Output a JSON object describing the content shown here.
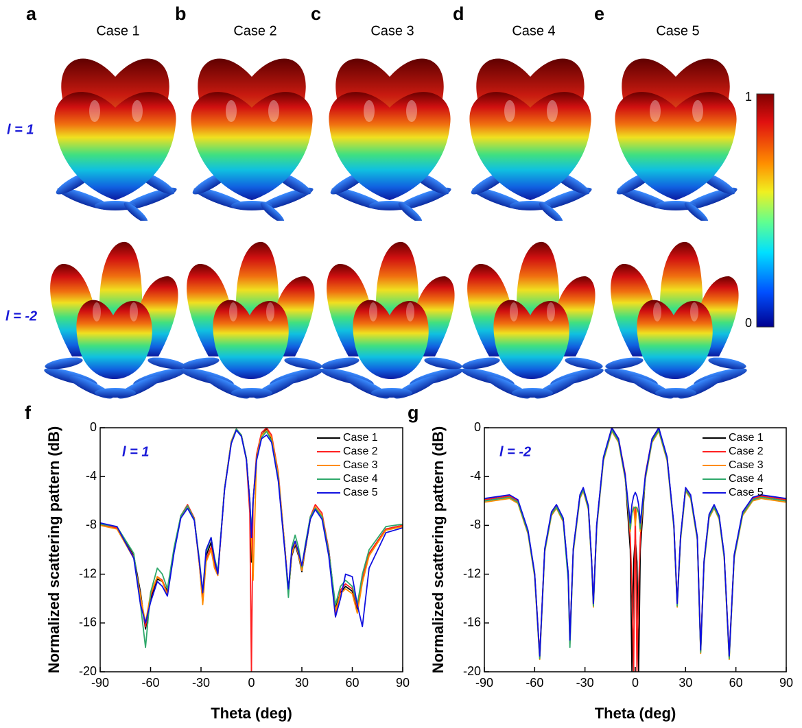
{
  "top": {
    "panels": [
      {
        "letter": "a",
        "title": "Case 1"
      },
      {
        "letter": "b",
        "title": "Case 2"
      },
      {
        "letter": "c",
        "title": "Case 3"
      },
      {
        "letter": "d",
        "title": "Case 4"
      },
      {
        "letter": "e",
        "title": "Case 5"
      }
    ],
    "rows": [
      "l = 1",
      "l = -2"
    ],
    "colorbar": {
      "max": 1,
      "min": 0
    }
  },
  "chart_data": [
    {
      "type": "line",
      "label": "f",
      "annotation": "l = 1",
      "x_label": "Theta (deg)",
      "y_label": "Normalized scattering pattern (dB)",
      "xlim": [
        -90,
        90
      ],
      "xticks": [
        -90,
        -60,
        -30,
        0,
        30,
        60,
        90
      ],
      "ylim": [
        -20,
        0
      ],
      "yticks": [
        0,
        -4,
        -8,
        -12,
        -16,
        -20
      ],
      "x": [
        -90,
        -80,
        -70,
        -66,
        -63,
        -60,
        -56,
        -53,
        -50,
        -46,
        -42,
        -38,
        -34,
        -31,
        -29,
        -27,
        -24,
        -22,
        -20,
        -16,
        -12,
        -9,
        -6,
        -3,
        -1,
        0,
        1,
        3,
        6,
        9,
        12,
        16,
        20,
        22,
        24,
        26,
        28,
        30,
        32,
        35,
        38,
        42,
        46,
        50,
        53,
        56,
        60,
        63,
        66,
        70,
        80,
        90
      ],
      "series": [
        {
          "name": "Case 1",
          "color": "#000000",
          "values": [
            -7.9,
            -8.2,
            -10.5,
            -13.5,
            -16.5,
            -14,
            -12.4,
            -12.6,
            -13.4,
            -10,
            -7.3,
            -6.4,
            -7.5,
            -11,
            -13.8,
            -10.5,
            -9.4,
            -11,
            -12,
            -5,
            -1.2,
            -0.1,
            -0.6,
            -2.5,
            -6,
            -11,
            -6,
            -2.5,
            -0.6,
            -0.1,
            -0.9,
            -4,
            -10,
            -13.5,
            -10.5,
            -9.6,
            -10.5,
            -11.8,
            -10,
            -7.5,
            -6.5,
            -7.2,
            -10,
            -14.8,
            -13.5,
            -13,
            -13.4,
            -15,
            -12.5,
            -10.3,
            -8.3,
            -8
          ]
        },
        {
          "name": "Case 2",
          "color": "#ff2020",
          "values": [
            -7.9,
            -8.2,
            -10.6,
            -13.8,
            -16.3,
            -13.8,
            -12.2,
            -12.5,
            -13.6,
            -10,
            -7.2,
            -6.3,
            -7.4,
            -11.2,
            -14.3,
            -10.8,
            -9.8,
            -11.3,
            -12.1,
            -5,
            -1.1,
            -0.1,
            -0.6,
            -2.6,
            -7,
            -20,
            -6,
            -2.2,
            -0.4,
            0,
            -0.6,
            -3.7,
            -10,
            -13.4,
            -10.2,
            -9.3,
            -10.2,
            -11.6,
            -9.8,
            -7.3,
            -6.3,
            -7,
            -10,
            -15.5,
            -13.3,
            -12.8,
            -13.2,
            -14.7,
            -12.4,
            -10.3,
            -8.3,
            -8
          ]
        },
        {
          "name": "Case 3",
          "color": "#ff8c00",
          "values": [
            -8,
            -8.3,
            -10.7,
            -13.8,
            -16,
            -13.6,
            -12.2,
            -12.6,
            -13.7,
            -10.1,
            -7.3,
            -6.4,
            -7.5,
            -11.2,
            -14.5,
            -11,
            -10,
            -11.5,
            -12.1,
            -5,
            -1.1,
            -0.1,
            -0.6,
            -2.6,
            -6,
            -9,
            -12.5,
            -2.5,
            -0.6,
            -0.2,
            -0.8,
            -3.9,
            -10,
            -13.6,
            -10.4,
            -9.4,
            -10.4,
            -11.7,
            -9.9,
            -7.4,
            -6.5,
            -7.2,
            -10.2,
            -15,
            -13.6,
            -13.2,
            -13.6,
            -15.2,
            -12.7,
            -10.5,
            -8.4,
            -8.1
          ]
        },
        {
          "name": "Case 4",
          "color": "#2ea86a",
          "values": [
            -7.9,
            -8.1,
            -10.3,
            -14.5,
            -18,
            -13.5,
            -11.5,
            -12,
            -13.2,
            -9.8,
            -7.2,
            -6.4,
            -7.5,
            -10.8,
            -13.5,
            -10.2,
            -9,
            -10.6,
            -11.8,
            -5,
            -1.2,
            -0.1,
            -0.6,
            -2.5,
            -6,
            -8.5,
            -6,
            -2.6,
            -0.8,
            -0.3,
            -1.1,
            -4.2,
            -10.2,
            -13.9,
            -9.8,
            -8.8,
            -9.8,
            -11.4,
            -9.6,
            -7.3,
            -6.6,
            -7.3,
            -10.2,
            -14.5,
            -13,
            -12.5,
            -13,
            -14.5,
            -12,
            -10,
            -8.1,
            -7.9
          ]
        },
        {
          "name": "Case 5",
          "color": "#1010e0",
          "values": [
            -7.8,
            -8.1,
            -10.7,
            -14.5,
            -16,
            -14.3,
            -12.6,
            -13,
            -13.8,
            -10.2,
            -7.4,
            -6.6,
            -7.6,
            -11,
            -13.5,
            -10,
            -9,
            -10.8,
            -12,
            -5.1,
            -1.3,
            -0.2,
            -0.7,
            -2.6,
            -6,
            -9,
            -6,
            -2.7,
            -0.9,
            -0.6,
            -1.2,
            -4.4,
            -10.3,
            -13.2,
            -10,
            -9.3,
            -10.2,
            -11.3,
            -9.8,
            -7.5,
            -6.7,
            -7.5,
            -10.5,
            -15.5,
            -14,
            -12,
            -12.2,
            -14.5,
            -16.3,
            -11.5,
            -8.6,
            -8.2
          ]
        }
      ]
    },
    {
      "type": "line",
      "label": "g",
      "annotation": "l = -2",
      "x_label": "Theta (deg)",
      "y_label": "Normalized scattering pattern (dB)",
      "xlim": [
        -90,
        90
      ],
      "xticks": [
        -90,
        -60,
        -30,
        0,
        30,
        60,
        90
      ],
      "ylim": [
        -20,
        0
      ],
      "yticks": [
        0,
        -4,
        -8,
        -12,
        -16,
        -20
      ],
      "x": [
        -90,
        -80,
        -75,
        -70,
        -64,
        -60,
        -57,
        -54,
        -50,
        -47,
        -43,
        -40,
        -39,
        -37,
        -33,
        -31,
        -28,
        -26,
        -25,
        -23,
        -19,
        -14,
        -10,
        -6,
        -3,
        -2,
        -1,
        0,
        1,
        2,
        3,
        6,
        10,
        14,
        19,
        23,
        25,
        27,
        30,
        33,
        37,
        39,
        41,
        44,
        47,
        50,
        53,
        56,
        59,
        64,
        70,
        75,
        80,
        90
      ],
      "series": [
        {
          "name": "Case 1",
          "color": "#000000",
          "values": [
            -5.9,
            -5.7,
            -5.6,
            -6,
            -8.5,
            -12,
            -18.8,
            -10,
            -7,
            -6.4,
            -7.5,
            -12,
            -17.5,
            -10,
            -5.6,
            -5,
            -6.5,
            -11,
            -14.5,
            -8,
            -2.5,
            -0.1,
            -1,
            -4,
            -10,
            -20,
            -11,
            -9,
            -11,
            -20,
            -10,
            -4,
            -1,
            -0.1,
            -2.5,
            -8,
            -14.5,
            -9,
            -5,
            -5.6,
            -9,
            -18.3,
            -11,
            -7.2,
            -6.4,
            -7.3,
            -10.5,
            -18.8,
            -10.5,
            -7,
            -5.8,
            -5.6,
            -5.7,
            -5.9
          ]
        },
        {
          "name": "Case 2",
          "color": "#ff2020",
          "values": [
            -5.9,
            -5.7,
            -5.6,
            -6,
            -8.5,
            -12,
            -18.6,
            -10,
            -7,
            -6.4,
            -7.5,
            -12,
            -17.3,
            -10,
            -5.6,
            -5,
            -6.5,
            -11,
            -14.3,
            -8,
            -2.5,
            0,
            -0.9,
            -3.8,
            -9,
            -13,
            -20,
            -6.5,
            -20,
            -13,
            -9,
            -3.8,
            -0.9,
            0,
            -2.5,
            -8,
            -14.3,
            -9,
            -5,
            -5.6,
            -9,
            -18,
            -11,
            -7.2,
            -6.4,
            -7.3,
            -10.5,
            -18.6,
            -10.5,
            -7,
            -5.8,
            -5.6,
            -5.7,
            -5.9
          ]
        },
        {
          "name": "Case 3",
          "color": "#ff8c00",
          "values": [
            -6.1,
            -5.9,
            -5.8,
            -6.2,
            -8.7,
            -12.2,
            -19,
            -10.2,
            -7.2,
            -6.6,
            -7.7,
            -12.2,
            -17.7,
            -10.2,
            -5.8,
            -5.2,
            -6.7,
            -11.2,
            -14.7,
            -8.2,
            -2.7,
            -0.3,
            -1.2,
            -4.2,
            -8.5,
            -7,
            -6.5,
            -8,
            -6.5,
            -7,
            -8.5,
            -4.2,
            -1.2,
            -0.3,
            -2.7,
            -8.2,
            -14.7,
            -9.2,
            -5.2,
            -5.8,
            -9.2,
            -18.5,
            -11.2,
            -7.4,
            -6.6,
            -7.5,
            -10.7,
            -19,
            -10.7,
            -7.2,
            -6,
            -5.8,
            -5.9,
            -6.1
          ]
        },
        {
          "name": "Case 4",
          "color": "#2ea86a",
          "values": [
            -6,
            -5.8,
            -5.7,
            -6.1,
            -8.6,
            -12.1,
            -18.9,
            -10.1,
            -7.1,
            -6.5,
            -7.6,
            -12.5,
            -18,
            -10.1,
            -5.7,
            -5.1,
            -6.6,
            -11.1,
            -14.6,
            -8.1,
            -2.6,
            -0.2,
            -1.1,
            -4.1,
            -8.3,
            -7,
            -6.6,
            -6.5,
            -6.6,
            -7,
            -8.3,
            -4.1,
            -1.1,
            -0.2,
            -2.6,
            -8.1,
            -14.6,
            -9.1,
            -5.1,
            -5.7,
            -9.1,
            -18.4,
            -11.1,
            -7.3,
            -6.5,
            -7.4,
            -10.6,
            -18.9,
            -10.6,
            -7.1,
            -5.9,
            -5.7,
            -5.8,
            -6
          ]
        },
        {
          "name": "Case 5",
          "color": "#1010e0",
          "values": [
            -5.8,
            -5.6,
            -5.5,
            -5.9,
            -8.4,
            -11.9,
            -18.7,
            -9.9,
            -6.9,
            -6.3,
            -7.4,
            -11.9,
            -17.4,
            -9.9,
            -5.5,
            -4.9,
            -6.4,
            -10.9,
            -14.4,
            -7.9,
            -2.4,
            0,
            -0.9,
            -3.9,
            -7.8,
            -6.3,
            -5.6,
            -5.3,
            -5.6,
            -6.3,
            -7.8,
            -3.9,
            -0.9,
            0,
            -2.4,
            -7.9,
            -14.4,
            -8.9,
            -4.9,
            -5.5,
            -8.9,
            -18.2,
            -10.9,
            -7.1,
            -6.3,
            -7.2,
            -10.4,
            -18.7,
            -10.4,
            -6.9,
            -5.7,
            -5.5,
            -5.6,
            -5.8
          ]
        }
      ]
    }
  ]
}
